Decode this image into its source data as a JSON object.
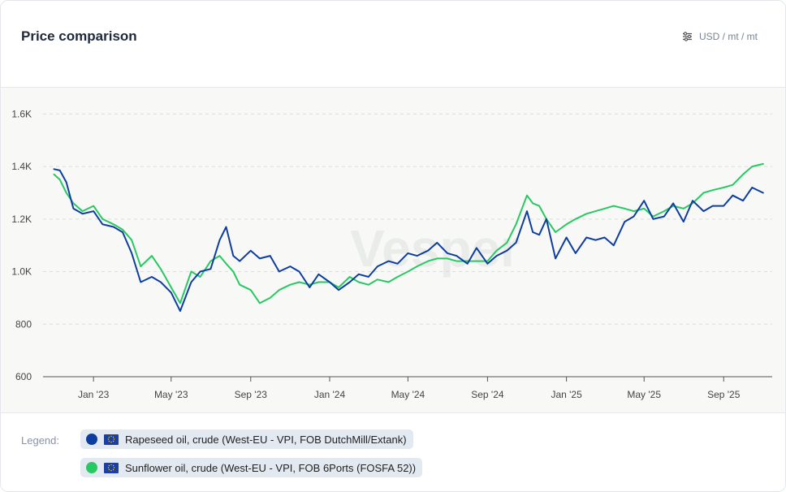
{
  "header": {
    "title": "Price comparison",
    "units": "USD / mt / mt",
    "settings_icon": "sliders-icon"
  },
  "legend": {
    "label": "Legend:",
    "items": [
      {
        "name": "Rapeseed oil, crude (West-EU - VPI, FOB DutchMill/Extank)",
        "color": "#0d3e9f",
        "icon": "eu-flag-icon"
      },
      {
        "name": "Sunflower oil, crude (West-EU - VPI, FOB 6Ports (FOSFA 52))",
        "color": "#28c862",
        "icon": "eu-flag-icon"
      }
    ]
  },
  "watermark": "Vesper",
  "chart_data": {
    "type": "line",
    "title": "Price comparison",
    "xlabel": "",
    "ylabel": "",
    "ylim": [
      600,
      1700
    ],
    "yticks": [
      600,
      800,
      1000,
      1200,
      1400,
      1600
    ],
    "ytick_labels": [
      "600",
      "800",
      "1.0K",
      "1.2K",
      "1.4K",
      "1.6K"
    ],
    "xlim": [
      "2022-10-15",
      "2025-11-15"
    ],
    "xticks": [
      "2023-01-01",
      "2023-05-01",
      "2023-09-01",
      "2024-01-01",
      "2024-05-01",
      "2024-09-01",
      "2025-01-01",
      "2025-05-01",
      "2025-09-01"
    ],
    "xtick_labels": [
      "Jan '23",
      "May '23",
      "Sep '23",
      "Jan '24",
      "May '24",
      "Sep '24",
      "Jan '25",
      "May '25",
      "Sep '25"
    ],
    "grid": "horizontal dashed",
    "legend_position": "bottom",
    "series": [
      {
        "name": "Rapeseed oil, crude (West-EU - VPI, FOB DutchMill/Extank)",
        "color": "#0d3e9f",
        "x": [
          "2022-11-01",
          "2022-11-10",
          "2022-11-20",
          "2022-12-01",
          "2022-12-15",
          "2023-01-01",
          "2023-01-15",
          "2023-02-01",
          "2023-02-15",
          "2023-03-01",
          "2023-03-15",
          "2023-04-01",
          "2023-04-15",
          "2023-05-01",
          "2023-05-15",
          "2023-06-01",
          "2023-06-15",
          "2023-07-01",
          "2023-07-15",
          "2023-07-25",
          "2023-08-05",
          "2023-08-15",
          "2023-09-01",
          "2023-09-15",
          "2023-10-01",
          "2023-10-15",
          "2023-11-01",
          "2023-11-15",
          "2023-12-01",
          "2023-12-15",
          "2024-01-01",
          "2024-01-15",
          "2024-02-01",
          "2024-02-15",
          "2024-03-01",
          "2024-03-15",
          "2024-04-01",
          "2024-04-15",
          "2024-05-01",
          "2024-05-15",
          "2024-06-01",
          "2024-06-15",
          "2024-07-01",
          "2024-07-15",
          "2024-08-01",
          "2024-08-15",
          "2024-09-01",
          "2024-09-15",
          "2024-10-01",
          "2024-10-15",
          "2024-11-01",
          "2024-11-10",
          "2024-11-20",
          "2024-12-01",
          "2024-12-15",
          "2025-01-01",
          "2025-01-15",
          "2025-02-01",
          "2025-02-15",
          "2025-03-01",
          "2025-03-15",
          "2025-04-01",
          "2025-04-15",
          "2025-05-01",
          "2025-05-15",
          "2025-06-01",
          "2025-06-15",
          "2025-07-01",
          "2025-07-15",
          "2025-08-01",
          "2025-08-15",
          "2025-09-01",
          "2025-09-15",
          "2025-10-01",
          "2025-10-15",
          "2025-11-01"
        ],
        "y": [
          1390,
          1385,
          1340,
          1240,
          1220,
          1230,
          1180,
          1170,
          1150,
          1070,
          960,
          980,
          960,
          920,
          850,
          960,
          1000,
          1010,
          1120,
          1170,
          1060,
          1040,
          1080,
          1050,
          1060,
          1000,
          1020,
          1000,
          940,
          990,
          960,
          930,
          960,
          990,
          980,
          1020,
          1040,
          1030,
          1070,
          1060,
          1080,
          1110,
          1070,
          1060,
          1030,
          1090,
          1030,
          1060,
          1080,
          1110,
          1230,
          1150,
          1140,
          1200,
          1050,
          1130,
          1070,
          1130,
          1120,
          1130,
          1100,
          1190,
          1210,
          1270,
          1200,
          1210,
          1260,
          1190,
          1270,
          1230,
          1250,
          1250,
          1290,
          1270,
          1320,
          1300
        ]
      },
      {
        "name": "Sunflower oil, crude (West-EU - VPI, FOB 6Ports (FOSFA 52))",
        "color": "#28c862",
        "x": [
          "2022-11-01",
          "2022-11-10",
          "2022-11-20",
          "2022-12-01",
          "2022-12-15",
          "2023-01-01",
          "2023-01-15",
          "2023-02-01",
          "2023-02-15",
          "2023-03-01",
          "2023-03-15",
          "2023-04-01",
          "2023-04-15",
          "2023-05-01",
          "2023-05-15",
          "2023-06-01",
          "2023-06-15",
          "2023-07-01",
          "2023-07-15",
          "2023-07-25",
          "2023-08-05",
          "2023-08-15",
          "2023-09-01",
          "2023-09-15",
          "2023-10-01",
          "2023-10-15",
          "2023-11-01",
          "2023-11-15",
          "2023-12-01",
          "2023-12-15",
          "2024-01-01",
          "2024-01-15",
          "2024-02-01",
          "2024-02-15",
          "2024-03-01",
          "2024-03-15",
          "2024-04-01",
          "2024-04-15",
          "2024-05-01",
          "2024-05-15",
          "2024-06-01",
          "2024-06-15",
          "2024-07-01",
          "2024-07-15",
          "2024-08-01",
          "2024-08-15",
          "2024-09-01",
          "2024-09-15",
          "2024-10-01",
          "2024-10-15",
          "2024-11-01",
          "2024-11-10",
          "2024-11-20",
          "2024-12-01",
          "2024-12-15",
          "2025-01-01",
          "2025-01-15",
          "2025-02-01",
          "2025-02-15",
          "2025-03-01",
          "2025-03-15",
          "2025-04-01",
          "2025-04-15",
          "2025-05-01",
          "2025-05-15",
          "2025-06-01",
          "2025-06-15",
          "2025-07-01",
          "2025-07-15",
          "2025-08-01",
          "2025-08-15",
          "2025-09-01",
          "2025-09-15",
          "2025-10-01",
          "2025-10-15",
          "2025-11-01"
        ],
        "y": [
          1370,
          1350,
          1300,
          1260,
          1230,
          1250,
          1200,
          1180,
          1160,
          1120,
          1020,
          1060,
          1010,
          940,
          880,
          1000,
          980,
          1040,
          1060,
          1030,
          1000,
          950,
          930,
          880,
          900,
          930,
          950,
          960,
          950,
          960,
          960,
          940,
          980,
          960,
          950,
          970,
          960,
          980,
          1000,
          1020,
          1040,
          1050,
          1050,
          1040,
          1040,
          1040,
          1040,
          1080,
          1110,
          1180,
          1290,
          1260,
          1250,
          1200,
          1150,
          1180,
          1200,
          1220,
          1230,
          1240,
          1250,
          1240,
          1230,
          1240,
          1210,
          1230,
          1250,
          1240,
          1260,
          1300,
          1310,
          1320,
          1330,
          1370,
          1400,
          1410
        ]
      }
    ]
  }
}
